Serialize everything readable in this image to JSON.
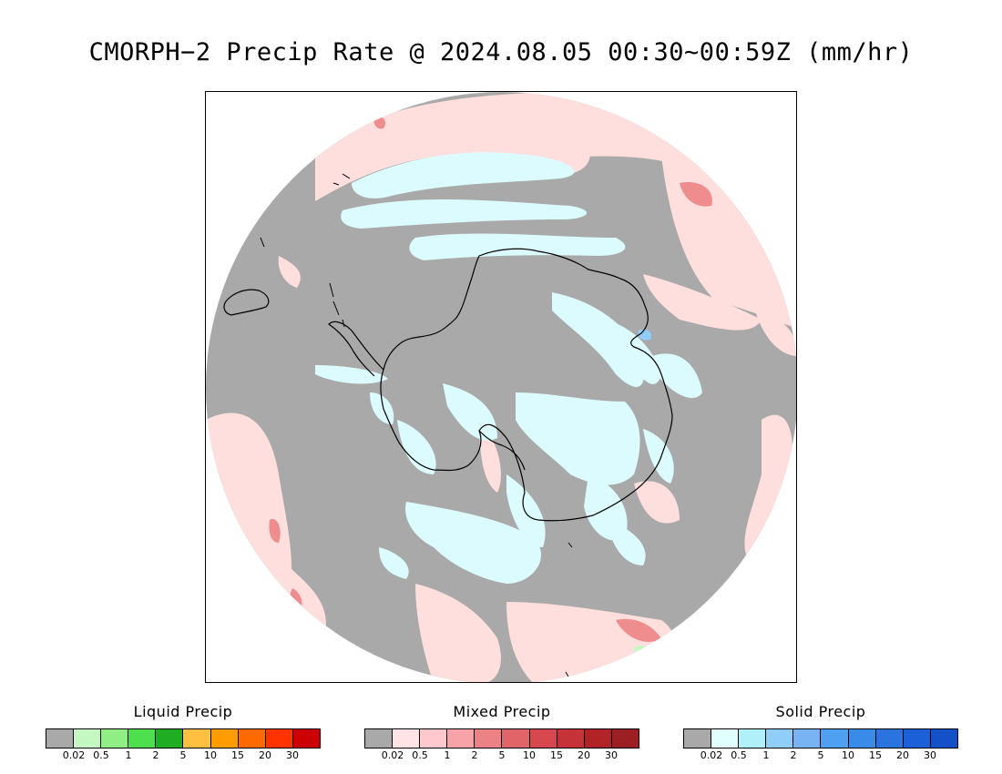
{
  "title": "CMORPH−2 Precip Rate @ 2024.08.05 00:30~00:59Z (mm/hr)",
  "map": {
    "projection": "south-polar-stereographic",
    "background_color": "#a9a9a9",
    "coast_color": "#000000"
  },
  "legends": [
    {
      "id": "liquid",
      "title": "Liquid Precip",
      "colors": [
        "#a9a9a9",
        "#c5f7c0",
        "#90ee85",
        "#4ddf4d",
        "#1fad24",
        "#ffbf40",
        "#ff9d00",
        "#ff6a00",
        "#ff3300",
        "#cc0000"
      ],
      "ticks": [
        "0.02",
        "0.5",
        "1",
        "2",
        "5",
        "10",
        "15",
        "20",
        "30"
      ]
    },
    {
      "id": "mixed",
      "title": "Mixed Precip",
      "colors": [
        "#a9a9a9",
        "#ffe3e6",
        "#ffc8cc",
        "#f7a3a7",
        "#ed8286",
        "#e06468",
        "#d6484d",
        "#c53338",
        "#b02428",
        "#9c1f23"
      ],
      "ticks": [
        "0.02",
        "0.5",
        "1",
        "2",
        "5",
        "10",
        "15",
        "20",
        "30"
      ]
    },
    {
      "id": "solid",
      "title": "Solid Precip",
      "colors": [
        "#a9a9a9",
        "#e0ffff",
        "#b0f0f8",
        "#90cdf8",
        "#78b4f4",
        "#4fa0f0",
        "#3a8ae8",
        "#2a74e0",
        "#1c60d8",
        "#1450c8"
      ],
      "ticks": [
        "0.02",
        "0.5",
        "1",
        "2",
        "5",
        "10",
        "15",
        "20",
        "30"
      ]
    }
  ]
}
